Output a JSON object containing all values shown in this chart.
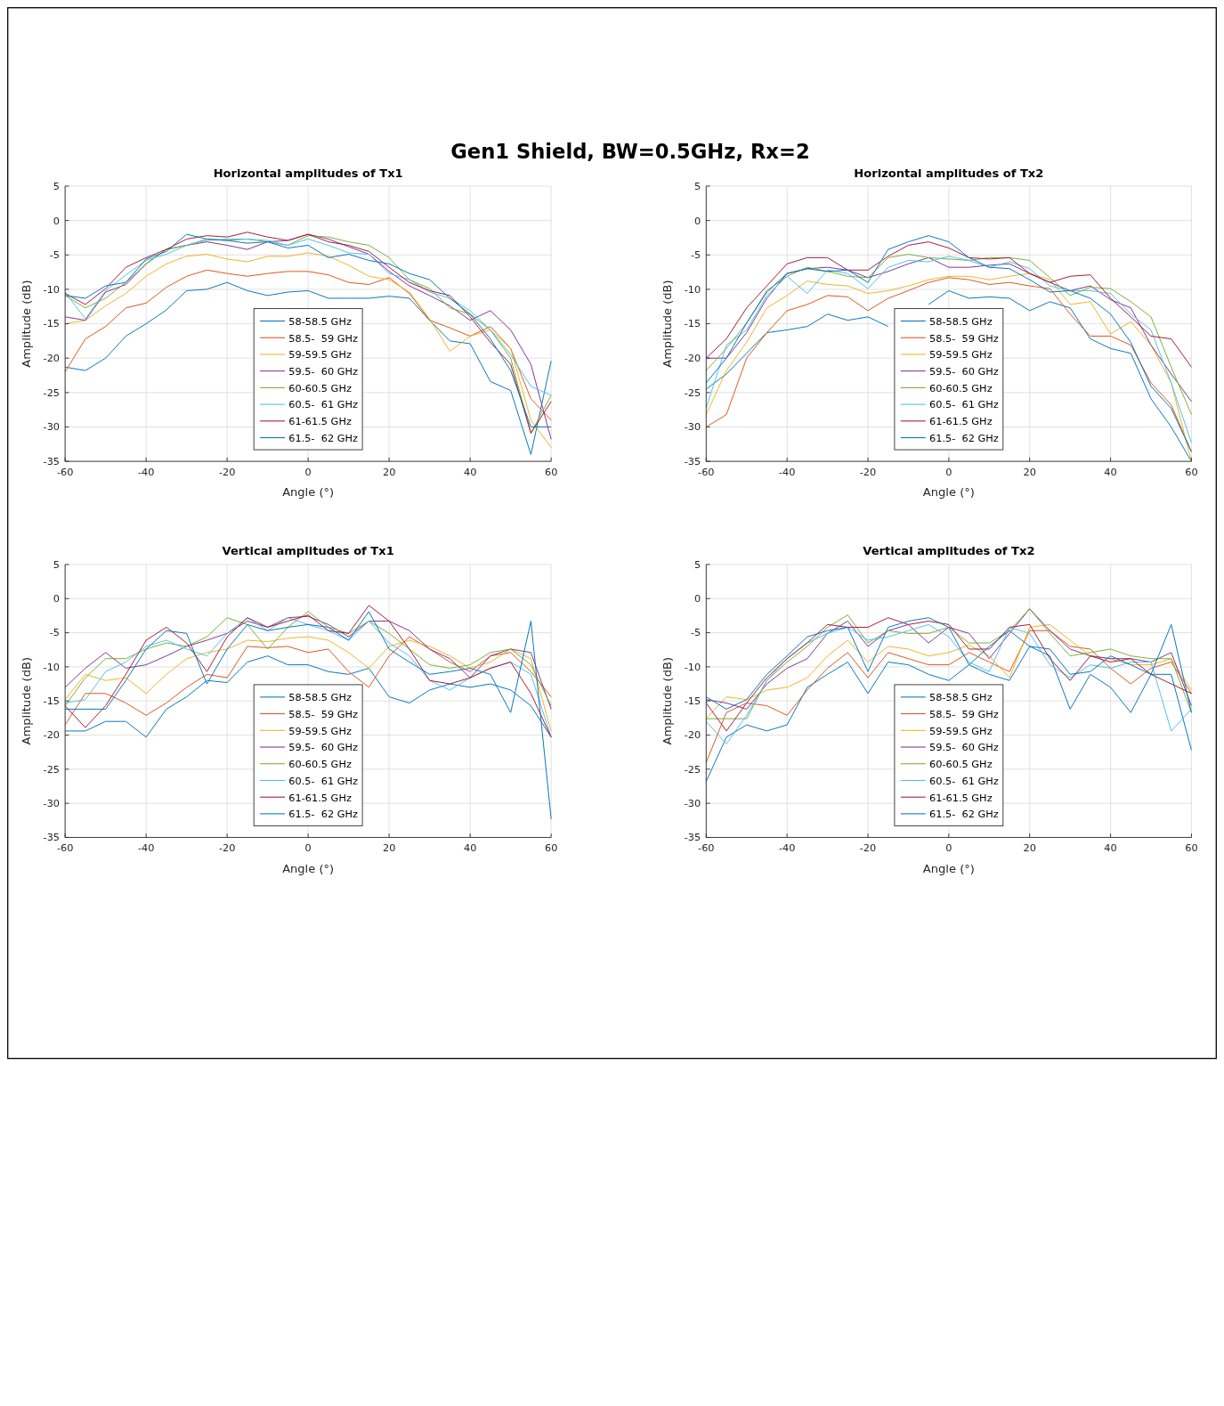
{
  "chart_data": [
    {
      "type": "line",
      "title": "Horizontal amplitudes of Tx1",
      "xlabel": "Angle (°)",
      "ylabel": "Amplitude (dB)",
      "annotations": [
        "Gen1 Shield, BW=0.5GHz, Rx=2"
      ],
      "x": [
        -60,
        -55,
        -50,
        -45,
        -40,
        -35,
        -30,
        -25,
        -20,
        -15,
        -10,
        -5,
        0,
        5,
        10,
        15,
        20,
        25,
        30,
        35,
        40,
        45,
        50,
        55,
        60
      ],
      "xlim": [
        -60,
        60
      ],
      "xticks": [
        -60,
        -40,
        -20,
        0,
        20,
        40,
        60
      ],
      "ylim": [
        -35,
        5
      ],
      "yticks": [
        5,
        0,
        -5,
        -10,
        -15,
        -20,
        -25,
        -30,
        -35
      ],
      "grid": true,
      "legend": "bottom",
      "series": [
        {
          "name": "58-58.5 GHz",
          "color": "#0072bd",
          "values": [
            -21.3,
            -21.8,
            -20,
            -16.8,
            -15,
            -13,
            -10.2,
            -10,
            -9,
            -10.2,
            -10.9,
            -10.4,
            -10.2,
            -11.3,
            -11.3,
            -11.3,
            -11,
            -11.3,
            -14.5,
            -17.5,
            -17.9,
            -23.4,
            -24.7,
            -34,
            -20.4
          ]
        },
        {
          "name": "58.5-  59 GHz",
          "color": "#d95319",
          "values": [
            -22,
            -17.2,
            -15.4,
            -12.7,
            -12,
            -9.7,
            -8.1,
            -7.2,
            -7.7,
            -8.1,
            -7.7,
            -7.4,
            -7.4,
            -7.9,
            -9,
            -9.3,
            -8.3,
            -10.6,
            -14.5,
            -15.6,
            -16.8,
            -15.4,
            -18.6,
            -25.9,
            -29
          ]
        },
        {
          "name": "59-59.5 GHz",
          "color": "#edb120",
          "values": [
            -15,
            -14.5,
            -12.4,
            -10.6,
            -8.1,
            -6.3,
            -5.2,
            -4.9,
            -5.6,
            -6,
            -5.2,
            -5.2,
            -4.7,
            -5.2,
            -6.5,
            -8.1,
            -8.6,
            -10.4,
            -14.3,
            -19,
            -16.8,
            -15.9,
            -18.6,
            -29,
            -33
          ]
        },
        {
          "name": "59.5-  60 GHz",
          "color": "#7e2f8e",
          "values": [
            -14,
            -14.5,
            -10.4,
            -9.3,
            -6.3,
            -4.2,
            -3.6,
            -3.1,
            -3.6,
            -4.2,
            -3.1,
            -2.9,
            -2,
            -2.7,
            -3.8,
            -4.9,
            -7.4,
            -9.5,
            -10.9,
            -12.4,
            -14.5,
            -13.1,
            -15.9,
            -20.9,
            -31.8
          ]
        },
        {
          "name": "60-60.5 GHz",
          "color": "#77ac30",
          "values": [
            -10.9,
            -12.7,
            -11.3,
            -9,
            -6.3,
            -4.2,
            -3.6,
            -2.7,
            -2.9,
            -2.7,
            -3.1,
            -3.6,
            -2.2,
            -2.4,
            -3.1,
            -3.6,
            -5.4,
            -8.6,
            -9.9,
            -12.7,
            -13.6,
            -15.9,
            -20,
            -30.9,
            -25.4
          ]
        },
        {
          "name": "60.5-  61 GHz",
          "color": "#4dbeee",
          "values": [
            -10.4,
            -14.3,
            -10.2,
            -7.9,
            -5.8,
            -4.9,
            -3.6,
            -2.9,
            -2.7,
            -2.7,
            -2.9,
            -3.6,
            -2.7,
            -3.6,
            -4.7,
            -4.9,
            -7.7,
            -8.6,
            -10.4,
            -11.3,
            -13.1,
            -15.9,
            -19.5,
            -24.1,
            -25.4
          ]
        },
        {
          "name": "61-61.5 GHz",
          "color": "#a2142f",
          "values": [
            -10.6,
            -12.2,
            -9.9,
            -6.8,
            -5.4,
            -4.2,
            -2.7,
            -2.2,
            -2.4,
            -1.7,
            -2.4,
            -2.9,
            -2,
            -3.1,
            -3.6,
            -4.5,
            -6.8,
            -9,
            -10.2,
            -10.9,
            -14,
            -17.7,
            -20.9,
            -30.9,
            -26.3
          ]
        },
        {
          "name": "61.5-  62 GHz",
          "color": "#0072bd",
          "values": [
            -10.9,
            -11.3,
            -9.5,
            -9,
            -5.6,
            -4.5,
            -2,
            -2.7,
            -2.9,
            -3.3,
            -3.1,
            -4,
            -3.6,
            -5.4,
            -4.9,
            -5.8,
            -6.3,
            -7.7,
            -8.6,
            -11.3,
            -13.6,
            -17.2,
            -21.8,
            -30,
            -30
          ]
        }
      ]
    },
    {
      "type": "line",
      "title": "Horizontal amplitudes of Tx2",
      "xlabel": "Angle (°)",
      "ylabel": "Amplitude (dB)",
      "x": [
        -60,
        -55,
        -50,
        -45,
        -40,
        -35,
        -30,
        -25,
        -20,
        -15,
        -10,
        -5,
        0,
        5,
        10,
        15,
        20,
        25,
        30,
        35,
        40,
        45,
        50,
        55,
        60
      ],
      "xlim": [
        -60,
        60
      ],
      "xticks": [
        -60,
        -40,
        -20,
        0,
        20,
        40,
        60
      ],
      "ylim": [
        -35,
        5
      ],
      "yticks": [
        5,
        0,
        -5,
        -10,
        -15,
        -20,
        -25,
        -30,
        -35
      ],
      "grid": true,
      "legend": "bottom",
      "series": [
        {
          "name": "58-58.5 GHz",
          "color": "#0072bd",
          "values": [
            -24.5,
            -22.3,
            -19.3,
            -16.3,
            -15.9,
            -15.4,
            -13.6,
            -14.5,
            -14,
            -15.4,
            null,
            -12.2,
            -10.2,
            -11.3,
            -11.1,
            -11.3,
            -13.1,
            -11.8,
            -12.7,
            -17.2,
            -18.6,
            -19.3,
            -25.9,
            -30,
            -35
          ]
        },
        {
          "name": "58.5-  59 GHz",
          "color": "#d95319",
          "values": [
            -30,
            -28.2,
            -20,
            -16.3,
            -13.1,
            -12.2,
            -10.9,
            -11.1,
            -13.1,
            -11.3,
            -10.2,
            -9,
            -8.3,
            -8.6,
            -9.3,
            -9,
            -9.5,
            -9.9,
            -13.6,
            -16.8,
            -16.8,
            -18.1,
            -23.6,
            -26.8,
            -33.6
          ]
        },
        {
          "name": "59-59.5 GHz",
          "color": "#edb120",
          "values": [
            -28.2,
            -21.8,
            -17.7,
            -12.7,
            -10.9,
            -8.8,
            -9.3,
            -9.5,
            -10.6,
            -10.2,
            -9.5,
            -8.6,
            -8.1,
            -8.1,
            -8.6,
            -8.1,
            -7.7,
            -8.6,
            -12.2,
            -11.8,
            -16.5,
            -14.7,
            -18.1,
            -23.6,
            -35
          ]
        },
        {
          "name": "59.5-  60 GHz",
          "color": "#7e2f8e",
          "values": [
            -20,
            -20,
            -16.3,
            -11.3,
            -7.7,
            -7,
            -6.8,
            -7.2,
            -8.3,
            -7.4,
            -6.3,
            -5.4,
            -6.8,
            -6.8,
            -6.5,
            -6.3,
            -7.7,
            -9,
            -10.2,
            -9.5,
            -11.5,
            -12.7,
            -18.1,
            -22.3,
            -26.3
          ]
        },
        {
          "name": "60-60.5 GHz",
          "color": "#77ac30",
          "values": [
            -21.8,
            -18.6,
            -14.9,
            -10.2,
            -8.1,
            -6.8,
            -7.4,
            -8.1,
            -8.3,
            -5.4,
            -4.9,
            -5.4,
            -5.6,
            -5.8,
            -5.4,
            -5.4,
            -5.8,
            -8.3,
            -10.9,
            -9.7,
            -9.9,
            -11.8,
            -14,
            -21.3,
            -28.2
          ]
        },
        {
          "name": "60.5-  61 GHz",
          "color": "#4dbeee",
          "values": [
            -27.3,
            -18.1,
            -15.9,
            -10.9,
            -8.1,
            -10.6,
            -7.2,
            -7.7,
            -9.9,
            -6.8,
            -5.8,
            -6,
            -5.2,
            -5.8,
            -6.8,
            -6,
            -7,
            -9.5,
            -10.2,
            -10.2,
            -10.6,
            -13.6,
            -15.9,
            -23.6,
            -32.3
          ]
        },
        {
          "name": "61-61.5 GHz",
          "color": "#a2142f",
          "values": [
            -20,
            -17.2,
            -12.7,
            -9.5,
            -6.3,
            -5.4,
            -5.4,
            -7.2,
            -7.2,
            -5.2,
            -3.6,
            -3.1,
            -4,
            -5.4,
            -5.6,
            -5.4,
            -7.7,
            -9,
            -8.1,
            -7.9,
            -11.3,
            -14,
            -16.8,
            -17.2,
            -21.3
          ]
        },
        {
          "name": "61.5-  62 GHz",
          "color": "#0072bd",
          "values": [
            -23.6,
            -20,
            -14.9,
            -10.4,
            -7.7,
            -7,
            -7.4,
            -7.2,
            -9,
            -4.2,
            -3.1,
            -2.2,
            -3.1,
            -5.4,
            -6.8,
            -7,
            -8.6,
            -10.4,
            -10.2,
            -11.3,
            -13.6,
            -17.7,
            -24.1,
            -27.3,
            -33.6
          ]
        }
      ]
    },
    {
      "type": "line",
      "title": "Vertical amplitudes of Tx1",
      "xlabel": "Angle (°)",
      "ylabel": "Amplitude (dB)",
      "x": [
        -60,
        -55,
        -50,
        -45,
        -40,
        -35,
        -30,
        -25,
        -20,
        -15,
        -10,
        -5,
        0,
        5,
        10,
        15,
        20,
        25,
        30,
        35,
        40,
        45,
        50,
        55,
        60
      ],
      "xlim": [
        -60,
        60
      ],
      "xticks": [
        -60,
        -40,
        -20,
        0,
        20,
        40,
        60
      ],
      "ylim": [
        -35,
        5
      ],
      "yticks": [
        5,
        0,
        -5,
        -10,
        -15,
        -20,
        -25,
        -30,
        -35
      ],
      "grid": true,
      "legend": "bottom",
      "series": [
        {
          "name": "58-58.5 GHz",
          "color": "#0072bd",
          "values": [
            -19.4,
            -19.4,
            -18,
            -18,
            -20.3,
            -16.2,
            -14.4,
            -12,
            -12.3,
            -9.3,
            -8.4,
            -9.7,
            -9.7,
            -10.7,
            -11.1,
            -10.2,
            -14.4,
            -15.3,
            -13.4,
            -12.5,
            -13,
            -12.5,
            -13.4,
            -15.7,
            -20.3
          ]
        },
        {
          "name": "58.5-  59 GHz",
          "color": "#d95319",
          "values": [
            -18.5,
            -13.9,
            -13.9,
            -15.3,
            -17.1,
            -15.3,
            -13,
            -11.1,
            -11.6,
            -7,
            -7.2,
            -7,
            -7.9,
            -7.4,
            -10.7,
            -13,
            -8.4,
            -5.6,
            -7.4,
            -9.3,
            -10.7,
            -8.4,
            -7.9,
            -10.7,
            -14.4
          ]
        },
        {
          "name": "59-59.5 GHz",
          "color": "#edb120",
          "values": [
            -14.8,
            -11.1,
            -12,
            -11.6,
            -13.9,
            -11.1,
            -8.8,
            -7.9,
            -7.4,
            -6.1,
            -6.3,
            -5.8,
            -5.6,
            -6.1,
            -7.9,
            -10.2,
            -7,
            -6.1,
            -7,
            -8.4,
            -10.2,
            -9.3,
            -7.4,
            -8.8,
            -19.4
          ]
        },
        {
          "name": "59.5-  60 GHz",
          "color": "#7e2f8e",
          "values": [
            -13,
            -10.2,
            -7.9,
            -10.2,
            -9.7,
            -8.4,
            -7,
            -6.1,
            -5.1,
            -3.3,
            -4.2,
            -2.8,
            -2.6,
            -3.8,
            -5.6,
            -3.3,
            -3.3,
            -4.7,
            -7.4,
            -8.8,
            -11.6,
            -8.4,
            -7.4,
            -7.9,
            -16.2
          ]
        },
        {
          "name": "60-60.5 GHz",
          "color": "#77ac30",
          "values": [
            -15.7,
            -11.6,
            -8.8,
            -8.8,
            -7.4,
            -6.5,
            -7,
            -5.6,
            -2.8,
            -3.8,
            -7.4,
            -4.2,
            -1.9,
            -4.2,
            -5.1,
            -3.3,
            -5.1,
            -7.4,
            -9.7,
            -10.2,
            -9.7,
            -7.9,
            -7.4,
            -9.7,
            -15.7
          ]
        },
        {
          "name": "60.5-  61 GHz",
          "color": "#4dbeee",
          "values": [
            -15.3,
            -14.8,
            -10.7,
            -9.3,
            -7,
            -6.1,
            -7.4,
            -8.4,
            -5.1,
            -2.8,
            -4.7,
            -2.8,
            -3.8,
            -4.7,
            -6.1,
            -3.3,
            -6.5,
            -8.4,
            -12,
            -13.4,
            -11.6,
            -10.2,
            -9.3,
            -11.1,
            -20.3
          ]
        },
        {
          "name": "61-61.5 GHz",
          "color": "#a2142f",
          "values": [
            -15.7,
            -18.9,
            -15.7,
            -11.1,
            -6.1,
            -4.2,
            -6.5,
            -10.7,
            -5.6,
            -2.8,
            -4.2,
            -3.3,
            -2.4,
            -4.7,
            -5.1,
            -1,
            -3.3,
            -7.4,
            -12,
            -12.5,
            -11.6,
            -10.2,
            -9.3,
            -13.9,
            -20.3
          ]
        },
        {
          "name": "61.5-  62 GHz",
          "color": "#0072bd",
          "values": [
            -16.2,
            -16.2,
            -16.2,
            -12,
            -7.4,
            -4.7,
            -5.1,
            -12.5,
            -7.4,
            -3.8,
            -4.7,
            -4.2,
            -3.8,
            -4.2,
            -6.1,
            -1.9,
            -7.4,
            -9.3,
            -11.1,
            -10.7,
            -10.2,
            -11.1,
            -16.7,
            -3.3,
            -32.3
          ]
        }
      ]
    },
    {
      "type": "line",
      "title": "Vertical amplitudes of Tx2",
      "xlabel": "Angle (°)",
      "ylabel": "Amplitude (dB)",
      "x": [
        -60,
        -55,
        -50,
        -45,
        -40,
        -35,
        -30,
        -25,
        -20,
        -15,
        -10,
        -5,
        0,
        5,
        10,
        15,
        20,
        25,
        30,
        35,
        40,
        45,
        50,
        55,
        60
      ],
      "xlim": [
        -60,
        60
      ],
      "xticks": [
        -60,
        -40,
        -20,
        0,
        20,
        40,
        60
      ],
      "ylim": [
        -35,
        5
      ],
      "yticks": [
        5,
        0,
        -5,
        -10,
        -15,
        -20,
        -25,
        -30,
        -35
      ],
      "grid": true,
      "legend": "bottom",
      "series": [
        {
          "name": "58-58.5 GHz",
          "color": "#0072bd",
          "values": [
            -26.8,
            -20.3,
            -18.5,
            -19.4,
            -18.5,
            -13,
            -11.1,
            -9.3,
            -13.9,
            -9.3,
            -9.7,
            -11.1,
            -12,
            -9.7,
            -11.1,
            -12,
            -7,
            -8.4,
            -16.2,
            -11.1,
            -13,
            -16.7,
            -11.1,
            -11.1,
            -22.2
          ]
        },
        {
          "name": "58.5-  59 GHz",
          "color": "#d95319",
          "values": [
            -24,
            -16.7,
            -15.3,
            -15.7,
            -17.1,
            -13.4,
            -10.2,
            -7.9,
            -11.6,
            -7.9,
            -8.8,
            -9.7,
            -9.7,
            -7.9,
            -9.3,
            -10.7,
            -4.7,
            -4.7,
            -7,
            -7.4,
            -10.2,
            -12.5,
            -10.2,
            -9.3,
            -13.9
          ]
        },
        {
          "name": "59-59.5 GHz",
          "color": "#edb120",
          "values": [
            -17.6,
            -14.4,
            -14.8,
            -13.4,
            -13,
            -11.6,
            -8.4,
            -6.1,
            -9.3,
            -7,
            -7.4,
            -8.4,
            -7.9,
            -6.8,
            -8.4,
            -11.6,
            -4.2,
            -3.8,
            -6.1,
            -8.4,
            -8.8,
            -9.7,
            -9.7,
            -8.8,
            -13.4
          ]
        },
        {
          "name": "59.5-  60 GHz",
          "color": "#7e2f8e",
          "values": [
            -14.8,
            -15.3,
            -16.2,
            -12.5,
            -10.2,
            -8.8,
            -5.1,
            -3.3,
            -7,
            -4.7,
            -3.8,
            -6.5,
            -4.2,
            -5.1,
            -8.8,
            -5.1,
            -1.5,
            -4.7,
            -7.4,
            -8.4,
            -8.8,
            -8.8,
            -9.3,
            -7.9,
            -15.7
          ]
        },
        {
          "name": "60-60.5 GHz",
          "color": "#77ac30",
          "values": [
            -17.6,
            -17.6,
            -17.6,
            -12,
            -9.3,
            -7,
            -4.2,
            -2.4,
            -6.5,
            -4.7,
            -5.1,
            -5.1,
            -4.2,
            -6.5,
            -6.5,
            -4.7,
            -1.5,
            -5.1,
            -8.4,
            -7.9,
            -7.4,
            -8.4,
            -8.8,
            -8.8,
            -16.7
          ]
        },
        {
          "name": "60.5-  61 GHz",
          "color": "#4dbeee",
          "values": [
            -18,
            -21.3,
            -17.1,
            -12,
            -8.8,
            -6.5,
            -5.1,
            -4.2,
            -6.1,
            -5.6,
            -4.7,
            -3.8,
            -5.6,
            -9.3,
            -10.7,
            -4.2,
            -5.1,
            -9.7,
            -11.6,
            -9.7,
            -10.2,
            -9.3,
            -9.3,
            -19.4,
            -16.2
          ]
        },
        {
          "name": "61-61.5 GHz",
          "color": "#a2142f",
          "values": [
            -15.3,
            -19.4,
            -15.3,
            -11.6,
            -8.8,
            -6.5,
            -3.8,
            -4.2,
            -4.2,
            -2.8,
            -3.8,
            -3.3,
            -3.8,
            -7.4,
            -7.4,
            -4.2,
            -3.8,
            -8.8,
            -12,
            -8.4,
            -9.3,
            -8.8,
            -11.1,
            -12.5,
            -13.9
          ]
        },
        {
          "name": "61.5-  62 GHz",
          "color": "#0072bd",
          "values": [
            -14.4,
            -16.2,
            -14.8,
            -11.1,
            -8.4,
            -5.6,
            -4.7,
            -4.2,
            -10.7,
            -4.2,
            -3.3,
            -2.8,
            -4.2,
            -9.7,
            -7,
            -4.7,
            -7,
            -7.4,
            -11.1,
            -10.7,
            -8.4,
            -9.7,
            -11.1,
            -3.8,
            -16.7
          ]
        }
      ]
    }
  ]
}
